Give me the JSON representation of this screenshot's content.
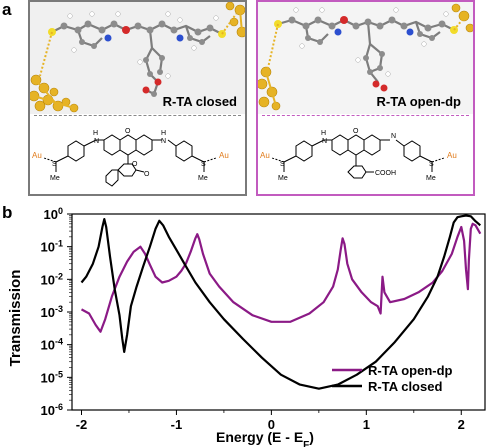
{
  "panel_a": {
    "label": "a",
    "closed": {
      "label": "R-TA closed",
      "frame_color": "#7a7a7a"
    },
    "open": {
      "label": "R-TA open-dp",
      "frame_color": "#c25bbf"
    },
    "chem_labels": {
      "au": "Au",
      "s": "S",
      "me": "Me",
      "nh": "H",
      "n": "N",
      "cooh": "COOH",
      "o": "O"
    }
  },
  "panel_b": {
    "label": "b"
  },
  "chart_data": {
    "type": "line",
    "xlabel": "Energy (E - E",
    "xlabel_sub": "F",
    "xlabel_close": ")",
    "ylabel": "Transmission",
    "xlim": [
      -2.1,
      2.25
    ],
    "ylim_log10": [
      -6,
      0
    ],
    "yscale": "log",
    "x_ticks": [
      -2,
      -1,
      0,
      1,
      2
    ],
    "x_tick_labels": [
      "-2",
      "-1",
      "0",
      "1",
      "2"
    ],
    "y_ticks_log10": [
      0,
      -1,
      -2,
      -3,
      -4,
      -5,
      -6
    ],
    "y_tick_labels": [
      {
        "base": "10",
        "exp": "0"
      },
      {
        "base": "10",
        "exp": "-1"
      },
      {
        "base": "10",
        "exp": "-2"
      },
      {
        "base": "10",
        "exp": "-3"
      },
      {
        "base": "10",
        "exp": "-4"
      },
      {
        "base": "10",
        "exp": "-5"
      },
      {
        "base": "10",
        "exp": "-6"
      }
    ],
    "legend_position": "bottom-right",
    "series": [
      {
        "name": "R-TA open-dp",
        "color": "#8b1a86",
        "points": [
          [
            -2.0,
            0.0012
          ],
          [
            -1.92,
            0.0009
          ],
          [
            -1.85,
            0.0004
          ],
          [
            -1.8,
            0.00025
          ],
          [
            -1.75,
            0.0006
          ],
          [
            -1.68,
            0.003
          ],
          [
            -1.6,
            0.012
          ],
          [
            -1.52,
            0.035
          ],
          [
            -1.45,
            0.07
          ],
          [
            -1.38,
            0.1
          ],
          [
            -1.33,
            0.06
          ],
          [
            -1.28,
            0.028
          ],
          [
            -1.22,
            0.012
          ],
          [
            -1.15,
            0.008
          ],
          [
            -1.08,
            0.009
          ],
          [
            -1.0,
            0.012
          ],
          [
            -0.95,
            0.018
          ],
          [
            -0.9,
            0.03
          ],
          [
            -0.85,
            0.07
          ],
          [
            -0.8,
            0.18
          ],
          [
            -0.78,
            0.24
          ],
          [
            -0.76,
            0.17
          ],
          [
            -0.72,
            0.06
          ],
          [
            -0.65,
            0.015
          ],
          [
            -0.55,
            0.006
          ],
          [
            -0.4,
            0.002
          ],
          [
            -0.2,
            0.0008
          ],
          [
            0.0,
            0.0005
          ],
          [
            0.2,
            0.0005
          ],
          [
            0.4,
            0.0009
          ],
          [
            0.55,
            0.002
          ],
          [
            0.65,
            0.006
          ],
          [
            0.7,
            0.02
          ],
          [
            0.73,
            0.08
          ],
          [
            0.75,
            0.18
          ],
          [
            0.77,
            0.12
          ],
          [
            0.8,
            0.03
          ],
          [
            0.85,
            0.01
          ],
          [
            0.95,
            0.004
          ],
          [
            1.05,
            0.002
          ],
          [
            1.12,
            0.0015
          ],
          [
            1.15,
            0.0009
          ],
          [
            1.17,
            0.012
          ],
          [
            1.19,
            0.004
          ],
          [
            1.25,
            0.002
          ],
          [
            1.4,
            0.0025
          ],
          [
            1.55,
            0.004
          ],
          [
            1.7,
            0.008
          ],
          [
            1.8,
            0.018
          ],
          [
            1.9,
            0.06
          ],
          [
            1.96,
            0.2
          ],
          [
            2.0,
            0.4
          ],
          [
            2.03,
            0.15
          ],
          [
            2.05,
            0.02
          ],
          [
            2.07,
            0.005
          ],
          [
            2.08,
            0.04
          ],
          [
            2.1,
            0.35
          ],
          [
            2.12,
            0.5
          ],
          [
            2.15,
            0.45
          ],
          [
            2.2,
            0.25
          ]
        ]
      },
      {
        "name": "R-TA closed",
        "color": "#000000",
        "points": [
          [
            -2.0,
            0.008
          ],
          [
            -1.95,
            0.012
          ],
          [
            -1.88,
            0.03
          ],
          [
            -1.82,
            0.1
          ],
          [
            -1.78,
            0.4
          ],
          [
            -1.76,
            0.7
          ],
          [
            -1.74,
            0.4
          ],
          [
            -1.7,
            0.05
          ],
          [
            -1.65,
            0.005
          ],
          [
            -1.6,
            0.0008
          ],
          [
            -1.57,
            0.00015
          ],
          [
            -1.55,
            6e-05
          ],
          [
            -1.52,
            0.0002
          ],
          [
            -1.48,
            0.0015
          ],
          [
            -1.42,
            0.006
          ],
          [
            -1.35,
            0.025
          ],
          [
            -1.28,
            0.1
          ],
          [
            -1.22,
            0.35
          ],
          [
            -1.18,
            0.62
          ],
          [
            -1.14,
            0.45
          ],
          [
            -1.08,
            0.2
          ],
          [
            -1.0,
            0.08
          ],
          [
            -0.9,
            0.025
          ],
          [
            -0.8,
            0.008
          ],
          [
            -0.65,
            0.002
          ],
          [
            -0.5,
            0.0006
          ],
          [
            -0.3,
            0.00015
          ],
          [
            -0.1,
            4e-05
          ],
          [
            0.1,
            1.2e-05
          ],
          [
            0.3,
            6e-06
          ],
          [
            0.5,
            4.5e-06
          ],
          [
            0.7,
            6e-06
          ],
          [
            0.9,
            1.2e-05
          ],
          [
            1.1,
            3e-05
          ],
          [
            1.3,
            0.00012
          ],
          [
            1.5,
            0.0006
          ],
          [
            1.65,
            0.003
          ],
          [
            1.75,
            0.012
          ],
          [
            1.82,
            0.05
          ],
          [
            1.88,
            0.2
          ],
          [
            1.92,
            0.55
          ],
          [
            1.96,
            0.8
          ],
          [
            2.0,
            0.85
          ],
          [
            2.05,
            0.9
          ],
          [
            2.1,
            0.85
          ],
          [
            2.15,
            0.6
          ],
          [
            2.2,
            0.45
          ]
        ]
      }
    ]
  }
}
